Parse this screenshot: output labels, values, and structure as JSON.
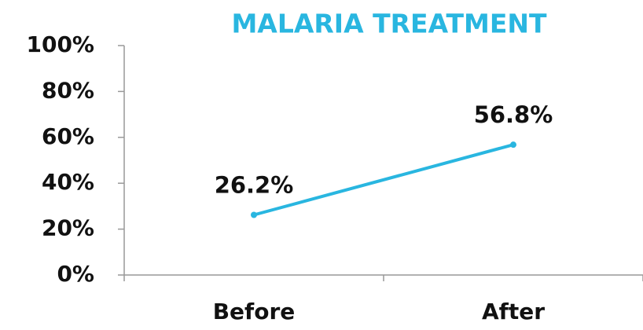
{
  "chart_data": {
    "type": "line",
    "title": "MALARIA TREATMENT",
    "categories": [
      "Before",
      "After"
    ],
    "series": [
      {
        "name": "Malaria treatment",
        "color": "#29b6e0",
        "values": [
          26.2,
          56.8
        ],
        "value_labels": [
          "26.2%",
          "56.8%"
        ]
      }
    ],
    "ylim": [
      0,
      100
    ],
    "yticks": [
      {
        "value": 0,
        "label": "0%"
      },
      {
        "value": 20,
        "label": "20%"
      },
      {
        "value": 40,
        "label": "40%"
      },
      {
        "value": 60,
        "label": "60%"
      },
      {
        "value": 80,
        "label": "80%"
      },
      {
        "value": 100,
        "label": "100%"
      }
    ],
    "grid": false
  }
}
